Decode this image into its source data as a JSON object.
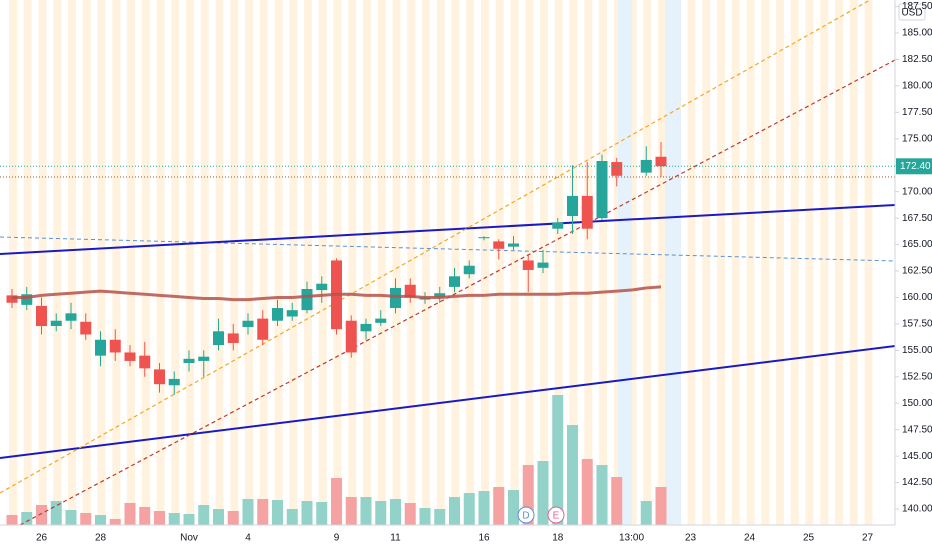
{
  "chart_data": {
    "type": "candlestick",
    "categories": [
      null,
      null,
      "26",
      null,
      null,
      null,
      "28",
      null,
      null,
      null,
      null,
      null,
      "Nov",
      null,
      null,
      null,
      "4",
      null,
      null,
      null,
      null,
      null,
      "9",
      null,
      null,
      null,
      "11",
      null,
      null,
      null,
      null,
      null,
      "16",
      null,
      null,
      null,
      null,
      "18",
      null,
      null,
      null,
      null,
      "13:00",
      null,
      null,
      null,
      "23",
      null,
      null,
      null,
      "24",
      null,
      null,
      null,
      "25",
      null,
      null,
      null,
      "27"
    ],
    "open": [
      160.2,
      159.3,
      159.2,
      157.3,
      157.8,
      157.7,
      154.5,
      156,
      154.8,
      154.5,
      153.2,
      151.7,
      153.8,
      154,
      155.5,
      156.6,
      157.2,
      158,
      157.8,
      158.2,
      158.8,
      160.7,
      163.5,
      157.8,
      156.8,
      157.6,
      159,
      161.2,
      159.8,
      160,
      161,
      162.2,
      165.6,
      165.3,
      164.8,
      163.5,
      162.8,
      166.5,
      167.7,
      169.6,
      167.5,
      172.8,
      null,
      171.8,
      173.3,
      null,
      null,
      null,
      null,
      null,
      null,
      null,
      null,
      null,
      null,
      null,
      null,
      null,
      null
    ],
    "high": [
      160.8,
      161,
      160,
      158.5,
      159.5,
      158.5,
      156.8,
      157,
      155.5,
      155.8,
      153.8,
      153,
      155,
      155,
      158,
      157.5,
      158.5,
      158.8,
      159.8,
      159.5,
      161.5,
      162,
      163.7,
      158.3,
      158,
      158.8,
      161.8,
      161.8,
      160.5,
      161,
      162.8,
      163.5,
      165.8,
      165.5,
      165.8,
      164,
      164.5,
      167.5,
      172.5,
      172.8,
      173.5,
      173.2,
      null,
      174.3,
      174.7,
      null,
      null,
      null,
      null,
      null,
      null,
      null,
      null,
      null,
      null,
      null,
      null,
      null,
      null
    ],
    "low": [
      159,
      158.8,
      156.5,
      156.8,
      157,
      156,
      153.5,
      154,
      153.5,
      152.5,
      151,
      150.8,
      153,
      152.5,
      155,
      155,
      156.5,
      155.5,
      157.3,
      157.8,
      158.5,
      159.5,
      156.5,
      154.3,
      156,
      157.3,
      158.5,
      159.5,
      159.4,
      159.5,
      160.5,
      161.8,
      165.4,
      163.6,
      164.5,
      160.5,
      162.3,
      166,
      166,
      165.5,
      167.3,
      170.5,
      null,
      171.5,
      171.4,
      null,
      null,
      null,
      null,
      null,
      null,
      null,
      null,
      null,
      null,
      null,
      null,
      null,
      null
    ],
    "close": [
      159.5,
      160.3,
      157.3,
      157.8,
      158.5,
      156.5,
      156,
      154.8,
      154,
      153.3,
      151.8,
      152.3,
      154.2,
      154.4,
      156.8,
      155.7,
      157.8,
      156,
      159,
      158.8,
      160.8,
      161.3,
      157,
      154.8,
      157.5,
      158,
      160.9,
      160,
      160,
      160.4,
      162,
      163,
      165.7,
      164.6,
      165.1,
      162.6,
      163.3,
      167.1,
      169.6,
      166.5,
      172.9,
      171.5,
      null,
      173,
      172.4,
      null,
      null,
      null,
      null,
      null,
      null,
      null,
      null,
      null,
      null,
      null,
      null,
      null,
      null
    ],
    "volume": [
      10,
      13,
      20,
      24,
      15,
      12,
      10,
      6,
      22,
      18,
      14,
      12,
      11,
      20,
      16,
      14,
      26,
      26,
      25,
      16,
      24,
      23,
      47,
      28,
      28,
      24,
      26,
      22,
      17,
      16,
      28,
      32,
      34,
      38,
      35,
      60,
      64,
      130,
      100,
      66,
      60,
      48,
      null,
      24,
      38,
      null,
      null,
      null,
      null,
      null,
      null,
      null,
      null,
      null,
      null,
      null,
      null,
      null,
      null
    ],
    "volume_lim": [
      0,
      525
    ],
    "ma": [
      160,
      160,
      160.2,
      160.3,
      160.4,
      160.5,
      160.6,
      160.5,
      160.4,
      160.3,
      160.2,
      160.1,
      160,
      159.9,
      159.9,
      159.8,
      159.8,
      159.9,
      160,
      160,
      160.1,
      160.2,
      160.3,
      160.3,
      160.2,
      160.2,
      160.1,
      160.1,
      160,
      160,
      160.1,
      160.2,
      160.2,
      160.3,
      160.3,
      160.3,
      160.3,
      160.3,
      160.4,
      160.4,
      160.5,
      160.6,
      160.7,
      160.9,
      161,
      null,
      null,
      null,
      null,
      null,
      null,
      null,
      null,
      null,
      null,
      null,
      null,
      null,
      null
    ],
    "ma_color": "#b5524a",
    "up_color": "#26a69a",
    "down_color": "#ef5350",
    "up_volume_color": "#93d2c9",
    "down_volume_color": "#f5a3a2",
    "ylim": [
      138.49,
      188.12
    ],
    "yticks": [
      {
        "value": 140,
        "label": "140.00"
      },
      {
        "value": 142.5,
        "label": "142.50"
      },
      {
        "value": 145,
        "label": "145.00"
      },
      {
        "value": 147.5,
        "label": "147.50"
      },
      {
        "value": 150,
        "label": "150.00"
      },
      {
        "value": 152.5,
        "label": "152.50"
      },
      {
        "value": 155,
        "label": "155.00"
      },
      {
        "value": 157.5,
        "label": "157.50"
      },
      {
        "value": 160,
        "label": "160.00"
      },
      {
        "value": 162.5,
        "label": "162.50"
      },
      {
        "value": 165,
        "label": "165.00"
      },
      {
        "value": 167.5,
        "label": "167.50"
      },
      {
        "value": 170,
        "label": "170.00"
      },
      {
        "value": 172.5,
        "label": "172.50"
      },
      {
        "value": 175,
        "label": "175.00"
      },
      {
        "value": 177.5,
        "label": "177.50"
      },
      {
        "value": 180,
        "label": "180.00"
      },
      {
        "value": 182.5,
        "label": "182.50"
      },
      {
        "value": 185,
        "label": "185.00"
      },
      {
        "value": 187.5,
        "label": "187.50"
      }
    ],
    "last_price": 172.4,
    "last_price_label": "172.40",
    "currency": "USD",
    "events": [
      "D",
      "E"
    ]
  }
}
